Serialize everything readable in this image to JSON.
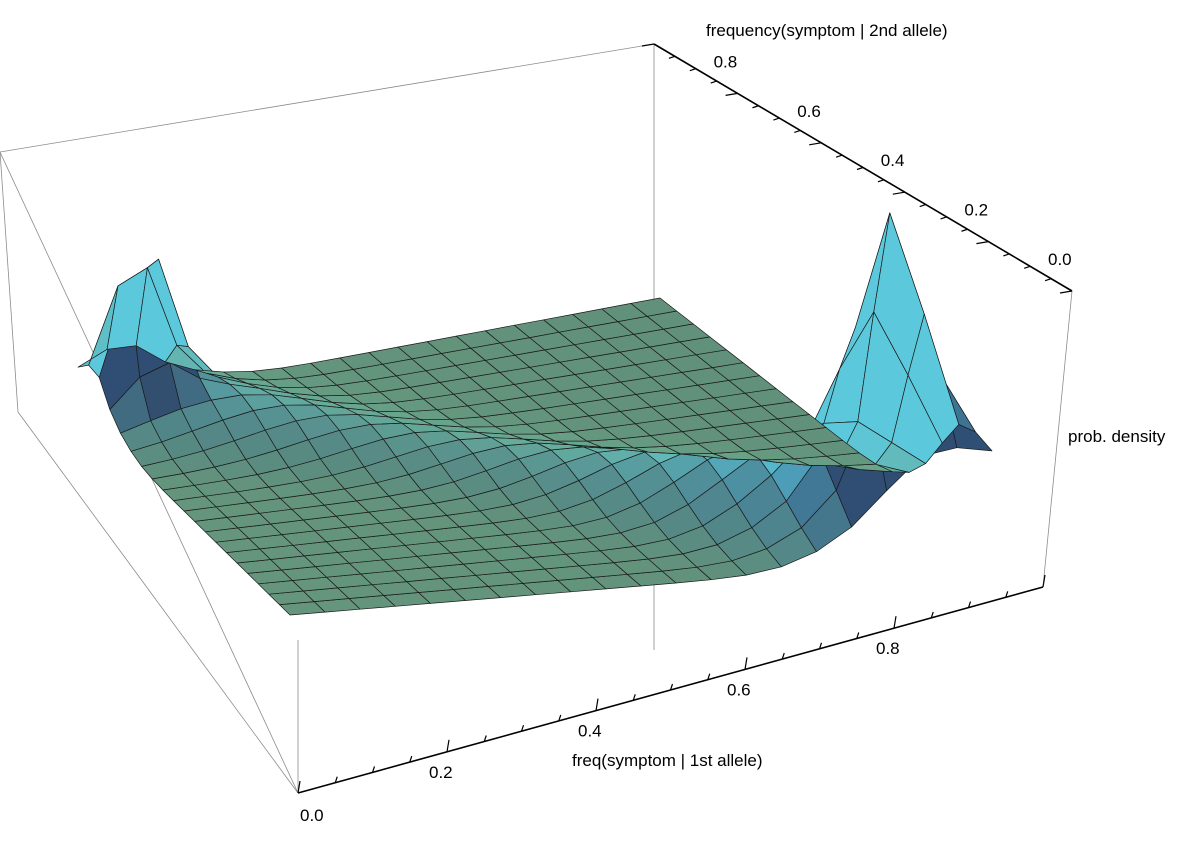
{
  "chart_data": {
    "type": "surface3d",
    "xlabel": "freq(symptom | 1st allele)",
    "ylabel": "frequency(symptom | 2nd allele)",
    "zlabel": "prob. density",
    "x_ticks": [
      "0.0",
      "0.2",
      "0.4",
      "0.6",
      "0.8"
    ],
    "y_ticks": [
      "0.0",
      "0.2",
      "0.4",
      "0.6",
      "0.8"
    ],
    "xlim": [
      0,
      1
    ],
    "ylim": [
      0,
      1
    ],
    "mesh_divisions": 20,
    "features": [
      {
        "x": 0.08,
        "y": 0.92,
        "height": "high",
        "shape": "sharp spike"
      },
      {
        "x": 0.9,
        "y": 0.1,
        "height": "highest",
        "shape": "sharp spike"
      },
      {
        "ridge": "along x + y = 1",
        "shape": "diagonal ridge connecting the spikes"
      }
    ],
    "colors": {
      "flat": "#6ba080",
      "mid": "#5cc8dc",
      "dark": "#25305a",
      "mesh": "#1a1a1a",
      "box": "#8c8c8c"
    }
  }
}
